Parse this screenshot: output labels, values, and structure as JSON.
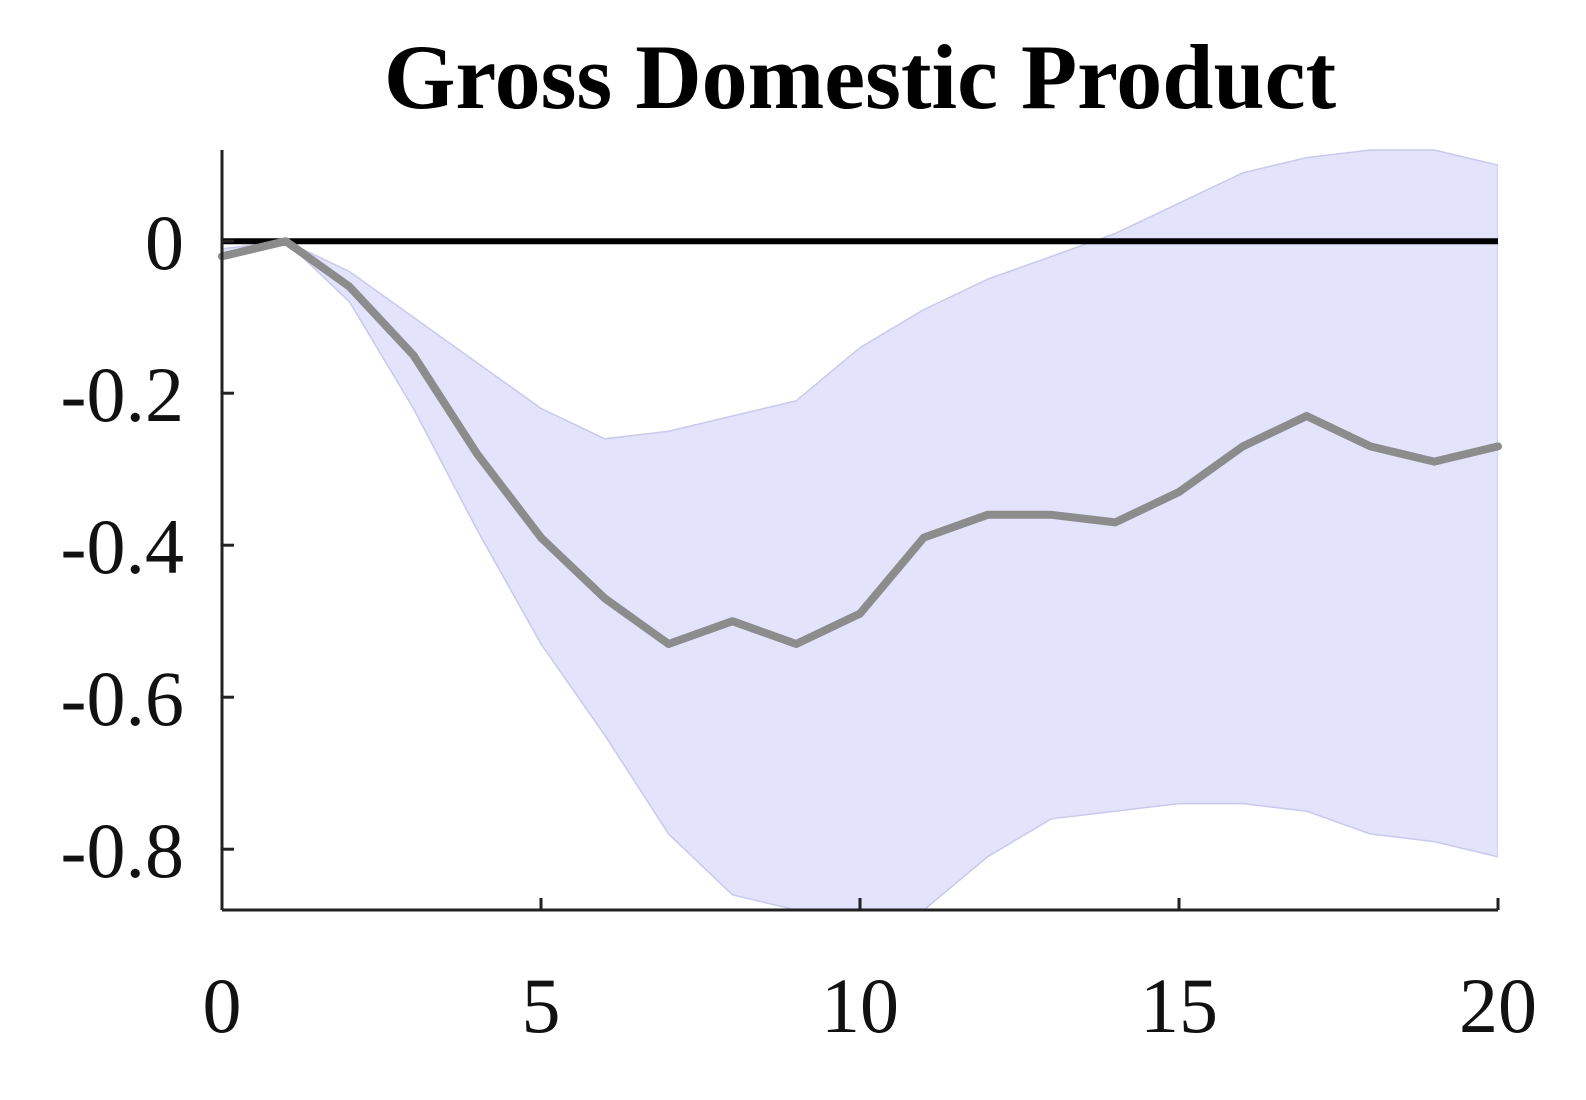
{
  "chart_data": {
    "type": "line",
    "title": "Gross Domestic Product",
    "xlabel": "",
    "ylabel": "",
    "xlim": [
      0,
      20
    ],
    "ylim": [
      -0.88,
      0.12
    ],
    "x_ticks": [
      0,
      5,
      10,
      15,
      20
    ],
    "y_ticks": [
      0,
      -0.2,
      -0.4,
      -0.6,
      -0.8
    ],
    "x_tick_labels": [
      "0",
      "5",
      "10",
      "15",
      "20"
    ],
    "y_tick_labels": [
      "0",
      "-0.2",
      "-0.4",
      "-0.6",
      "-0.8"
    ],
    "grid": false,
    "legend": "none",
    "x": [
      0,
      1,
      2,
      3,
      4,
      5,
      6,
      7,
      8,
      9,
      10,
      11,
      12,
      13,
      14,
      15,
      16,
      17,
      18,
      19,
      20
    ],
    "series": [
      {
        "role": "median",
        "values": [
          -0.02,
          0.0,
          -0.06,
          -0.15,
          -0.28,
          -0.39,
          -0.47,
          -0.53,
          -0.5,
          -0.53,
          -0.49,
          -0.39,
          -0.36,
          -0.36,
          -0.37,
          -0.33,
          -0.27,
          -0.23,
          -0.27,
          -0.29,
          -0.27
        ],
        "color": "#8c8c8c"
      },
      {
        "role": "band-upper",
        "values": [
          -0.01,
          0.0,
          -0.04,
          -0.1,
          -0.16,
          -0.22,
          -0.26,
          -0.25,
          -0.23,
          -0.21,
          -0.14,
          -0.09,
          -0.05,
          -0.02,
          0.01,
          0.05,
          0.09,
          0.11,
          0.12,
          0.12,
          0.1
        ],
        "color": "#e3e3fb"
      },
      {
        "role": "band-lower",
        "values": [
          -0.02,
          0.0,
          -0.08,
          -0.22,
          -0.38,
          -0.53,
          -0.65,
          -0.78,
          -0.86,
          -0.88,
          -0.89,
          -0.88,
          -0.81,
          -0.76,
          -0.75,
          -0.74,
          -0.74,
          -0.75,
          -0.78,
          -0.79,
          -0.81
        ],
        "color": "#e3e3fb"
      },
      {
        "role": "zero-line",
        "values": [
          0,
          0
        ],
        "x": [
          0,
          20
        ],
        "color": "#000000"
      }
    ]
  }
}
